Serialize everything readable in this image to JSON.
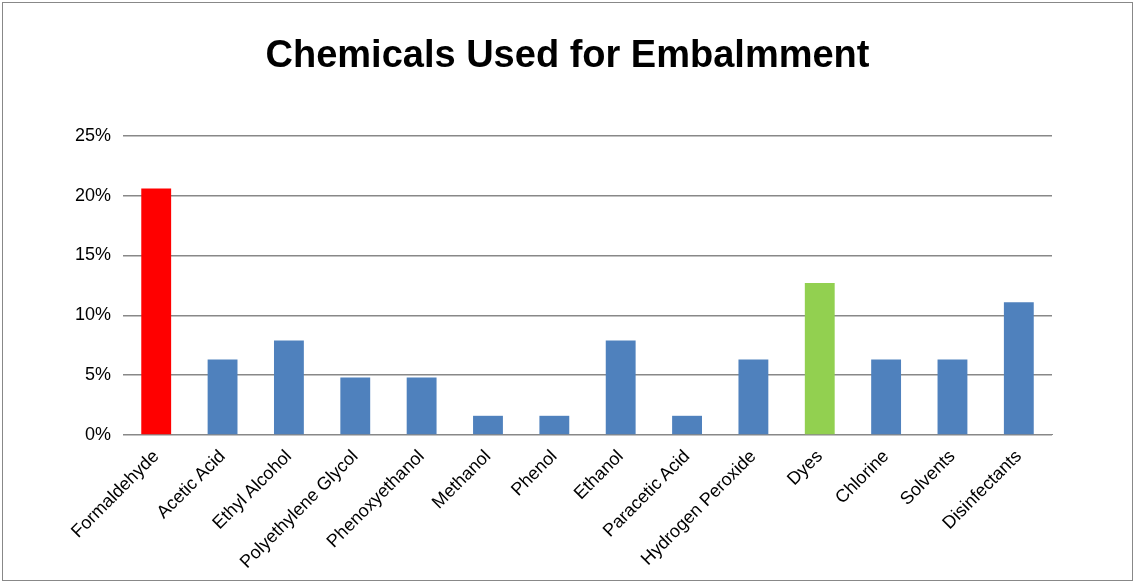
{
  "chart_data": {
    "type": "bar",
    "title": "Chemicals Used for Embalmment",
    "categories": [
      "Formaldehyde",
      "Acetic Acid",
      "Ethyl Alcohol",
      "Polyethylene Glycol",
      "Phenoxyethanol",
      "Methanol",
      "Phenol",
      "Ethanol",
      "Paracetic Acid",
      "Hydrogen Peroxide",
      "Dyes",
      "Chlorine",
      "Solvents",
      "Disinfectants"
    ],
    "values": [
      20.6,
      6.3,
      7.9,
      4.8,
      4.8,
      1.6,
      1.6,
      7.9,
      1.6,
      6.3,
      12.7,
      6.3,
      6.3,
      11.1
    ],
    "colors": [
      "#ff0000",
      "#4f81bd",
      "#4f81bd",
      "#4f81bd",
      "#4f81bd",
      "#4f81bd",
      "#4f81bd",
      "#4f81bd",
      "#4f81bd",
      "#4f81bd",
      "#92d050",
      "#4f81bd",
      "#4f81bd",
      "#4f81bd"
    ],
    "ylim": [
      0,
      25
    ],
    "yticks": [
      {
        "value": 0,
        "label": "0%"
      },
      {
        "value": 5,
        "label": "5%"
      },
      {
        "value": 10,
        "label": "10%"
      },
      {
        "value": 15,
        "label": "15%"
      },
      {
        "value": 20,
        "label": "20%"
      },
      {
        "value": 25,
        "label": "25%"
      }
    ],
    "grid": "y",
    "legend": false
  }
}
